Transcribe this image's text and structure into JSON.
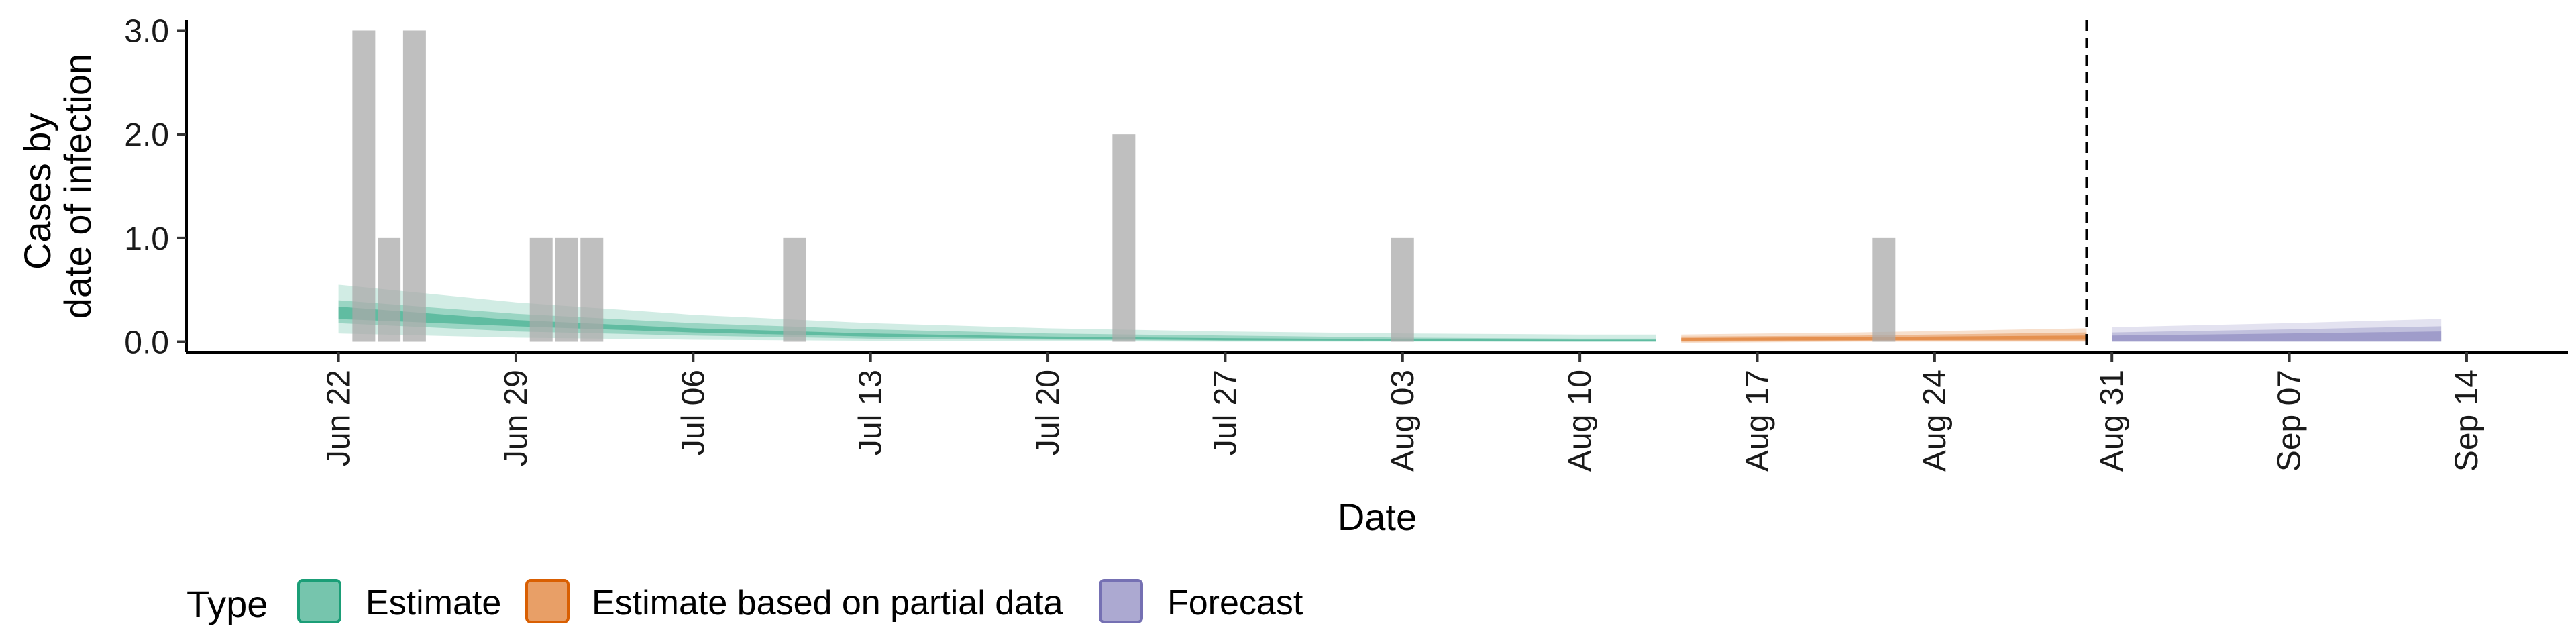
{
  "chart_data": {
    "type": "bar",
    "xlabel": "Date",
    "ylabel_lines": [
      "Cases by",
      "date of infection"
    ],
    "xlim": [
      "2020-06-16",
      "2020-09-18"
    ],
    "ylim": [
      -0.1,
      3.1
    ],
    "y_ticks": [
      0,
      1,
      2,
      3
    ],
    "y_tick_labels": [
      "0.0",
      "1.0",
      "2.0",
      "3.0"
    ],
    "x_ticks": [
      "2020-06-22",
      "2020-06-29",
      "2020-07-06",
      "2020-07-13",
      "2020-07-20",
      "2020-07-27",
      "2020-08-03",
      "2020-08-10",
      "2020-08-17",
      "2020-08-24",
      "2020-08-31",
      "2020-09-07",
      "2020-09-14"
    ],
    "x_tick_labels": [
      "Jun 22",
      "Jun 29",
      "Jul 06",
      "Jul 13",
      "Jul 20",
      "Jul 27",
      "Aug 03",
      "Aug 10",
      "Aug 17",
      "Aug 24",
      "Aug 31",
      "Sep 07",
      "Sep 14"
    ],
    "grid": false,
    "vline_date": "2020-08-30",
    "reported_cases": [
      {
        "date": "2020-06-23",
        "value": 3
      },
      {
        "date": "2020-06-24",
        "value": 1
      },
      {
        "date": "2020-06-25",
        "value": 3
      },
      {
        "date": "2020-06-30",
        "value": 1
      },
      {
        "date": "2020-07-01",
        "value": 1
      },
      {
        "date": "2020-07-02",
        "value": 1
      },
      {
        "date": "2020-07-10",
        "value": 1
      },
      {
        "date": "2020-07-23",
        "value": 2
      },
      {
        "date": "2020-08-03",
        "value": 1
      },
      {
        "date": "2020-08-22",
        "value": 1
      }
    ],
    "series": [
      {
        "name": "Estimate",
        "color": "#1b9e77",
        "dates": [
          "2020-06-22",
          "2020-06-29",
          "2020-07-06",
          "2020-07-13",
          "2020-07-20",
          "2020-07-27",
          "2020-08-03",
          "2020-08-10",
          "2020-08-13"
        ],
        "lower90": [
          0.08,
          0.04,
          0.02,
          0.01,
          0.005,
          0.0,
          0.0,
          0.0,
          0.0
        ],
        "upper90": [
          0.55,
          0.38,
          0.26,
          0.18,
          0.13,
          0.1,
          0.08,
          0.07,
          0.07
        ],
        "lower50": [
          0.18,
          0.1,
          0.06,
          0.03,
          0.02,
          0.01,
          0.005,
          0.0,
          0.0
        ],
        "upper50": [
          0.4,
          0.27,
          0.18,
          0.12,
          0.08,
          0.06,
          0.04,
          0.03,
          0.03
        ],
        "lower20": [
          0.22,
          0.15,
          0.09,
          0.05,
          0.03,
          0.015,
          0.01,
          0.005,
          0.005
        ],
        "upper20": [
          0.34,
          0.21,
          0.13,
          0.08,
          0.05,
          0.035,
          0.025,
          0.02,
          0.02
        ]
      },
      {
        "name": "Estimate based on partial data",
        "color": "#d95f02",
        "dates": [
          "2020-08-14",
          "2020-08-21",
          "2020-08-30"
        ],
        "lower90": [
          -0.01,
          0.0,
          0.0
        ],
        "upper90": [
          0.07,
          0.09,
          0.13
        ],
        "lower50": [
          0.0,
          0.005,
          0.01
        ],
        "upper50": [
          0.05,
          0.06,
          0.09
        ],
        "lower20": [
          0.01,
          0.015,
          0.02
        ],
        "upper20": [
          0.035,
          0.045,
          0.06
        ]
      },
      {
        "name": "Forecast",
        "color": "#7570b3",
        "dates": [
          "2020-08-31",
          "2020-09-07",
          "2020-09-13"
        ],
        "lower90": [
          0.0,
          0.0,
          0.0
        ],
        "upper90": [
          0.14,
          0.18,
          0.22
        ],
        "lower50": [
          0.0,
          0.0,
          0.0
        ],
        "upper50": [
          0.09,
          0.12,
          0.15
        ],
        "lower20": [
          0.01,
          0.01,
          0.01
        ],
        "upper20": [
          0.06,
          0.08,
          0.1
        ]
      }
    ],
    "legend": {
      "title": "Type",
      "position": "bottom",
      "entries": [
        "Estimate",
        "Estimate based on partial data",
        "Forecast"
      ]
    }
  }
}
